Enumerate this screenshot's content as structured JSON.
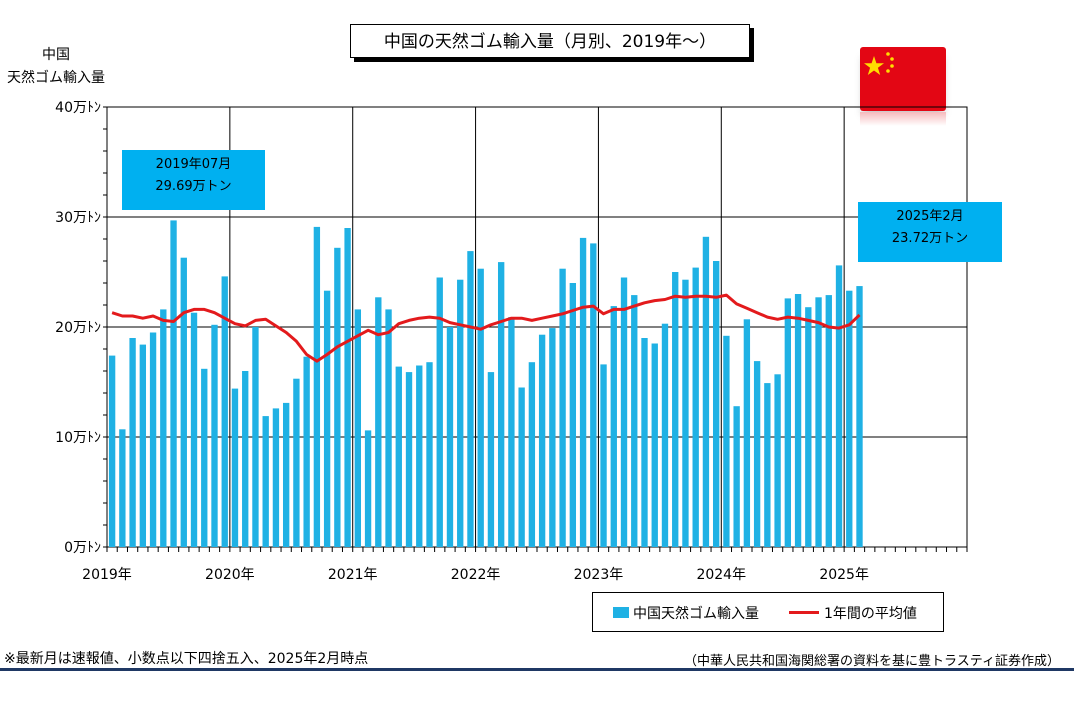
{
  "title": "中国の天然ゴム輸入量（月別、2019年～）",
  "ylabel_line1": "中国",
  "ylabel_line2": "天然ゴム輸入量",
  "callout_left_line1": "2019年07月",
  "callout_left_line2": "29.69万トン",
  "callout_right_line1": "2025年2月",
  "callout_right_line2": "23.72万トン",
  "legend_bar": "中国天然ゴム輸入量",
  "legend_line": "1年間の平均値",
  "note": "※最新月は速報値、小数点以下四捨五入、2025年2月時点",
  "source": "（中華人民共和国海関総署の資料を基に豊トラスティ証券作成）",
  "colors": {
    "bar": "#1fb1e4",
    "line": "#e31a1c",
    "callout": "#00b0f0",
    "flag": "#e30614",
    "rule": "#1f3864"
  },
  "chart_data": {
    "type": "bar",
    "unit": "万トン",
    "ylim": [
      0,
      40
    ],
    "yticks": [
      "0万ﾄﾝ",
      "10万ﾄﾝ",
      "20万ﾄﾝ",
      "30万ﾄﾝ",
      "40万ﾄﾝ"
    ],
    "xticks": [
      "2019年",
      "2020年",
      "2021年",
      "2022年",
      "2023年",
      "2024年",
      "2025年"
    ],
    "xrange_months": [
      "2019-01",
      "2025-12"
    ],
    "series": [
      {
        "name": "中国天然ゴム輸入量",
        "start": "2019-01",
        "values": [
          17.4,
          10.7,
          19.0,
          18.4,
          19.5,
          21.6,
          29.69,
          26.3,
          21.3,
          16.2,
          20.2,
          24.6,
          14.4,
          16.0,
          20.0,
          11.9,
          12.6,
          13.1,
          15.3,
          17.3,
          29.1,
          23.3,
          27.2,
          29.0,
          21.6,
          10.6,
          22.7,
          21.6,
          16.4,
          15.9,
          16.5,
          16.8,
          24.5,
          20.0,
          24.3,
          26.9,
          25.3,
          15.9,
          25.9,
          20.9,
          14.5,
          16.8,
          19.3,
          19.9,
          25.3,
          24.0,
          28.1,
          27.6,
          16.6,
          21.9,
          24.5,
          22.9,
          19.0,
          18.5,
          20.3,
          25.0,
          24.3,
          25.4,
          28.2,
          26.0,
          19.2,
          12.8,
          20.7,
          16.9,
          14.9,
          15.7,
          22.6,
          23.0,
          21.8,
          22.7,
          22.9,
          25.6,
          23.3,
          23.72
        ]
      },
      {
        "name": "1年間の平均値",
        "type": "line",
        "start": "2019-01",
        "values": [
          21.3,
          21.0,
          21.0,
          20.8,
          21.0,
          20.6,
          20.5,
          21.3,
          21.6,
          21.6,
          21.3,
          20.8,
          20.3,
          20.1,
          20.6,
          20.7,
          20.1,
          19.5,
          18.7,
          17.5,
          16.9,
          17.5,
          18.2,
          18.7,
          19.2,
          19.7,
          19.3,
          19.5,
          20.3,
          20.6,
          20.8,
          20.9,
          20.8,
          20.4,
          20.2,
          20.0,
          19.8,
          20.2,
          20.5,
          20.8,
          20.8,
          20.6,
          20.8,
          21.0,
          21.2,
          21.5,
          21.8,
          21.9,
          21.2,
          21.6,
          21.6,
          21.9,
          22.2,
          22.4,
          22.5,
          22.8,
          22.7,
          22.8,
          22.8,
          22.7,
          22.9,
          22.1,
          21.7,
          21.3,
          20.9,
          20.7,
          20.9,
          20.8,
          20.6,
          20.4,
          20.0,
          19.9,
          20.2,
          21.1
        ]
      }
    ],
    "annotations": [
      {
        "label": "2019年07月 29.69万トン",
        "month": "2019-07",
        "value": 29.69
      },
      {
        "label": "2025年2月 23.72万トン",
        "month": "2025-02",
        "value": 23.72
      }
    ],
    "grid": true,
    "legend": "bottom-right"
  }
}
